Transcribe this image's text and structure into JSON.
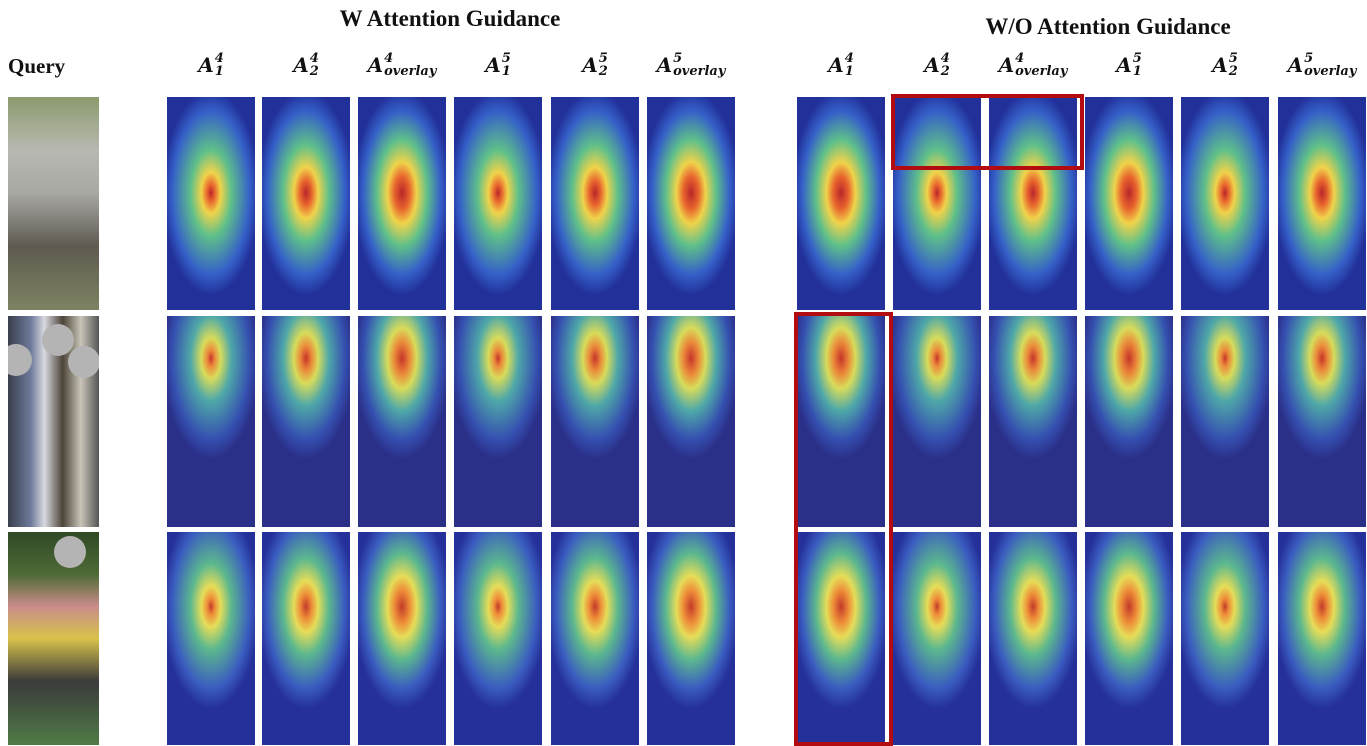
{
  "header": {
    "left_title": "W Attention Guidance",
    "right_title": "W/O Attention Guidance",
    "query_label": "Query"
  },
  "groups": [
    {
      "columns": [
        {
          "base": "A",
          "sup": "4",
          "sub": "1"
        },
        {
          "base": "A",
          "sup": "4",
          "sub": "2"
        },
        {
          "base": "A",
          "sup": "4",
          "sub": "overlay"
        },
        {
          "base": "A",
          "sup": "5",
          "sub": "1"
        },
        {
          "base": "A",
          "sup": "5",
          "sub": "2"
        },
        {
          "base": "A",
          "sup": "5",
          "sub": "overlay"
        }
      ]
    },
    {
      "columns": [
        {
          "base": "A",
          "sup": "4",
          "sub": "1"
        },
        {
          "base": "A",
          "sup": "4",
          "sub": "2"
        },
        {
          "base": "A",
          "sup": "4",
          "sub": "overlay"
        },
        {
          "base": "A",
          "sup": "5",
          "sub": "1"
        },
        {
          "base": "A",
          "sup": "5",
          "sub": "2"
        },
        {
          "base": "A",
          "sup": "5",
          "sub": "overlay"
        }
      ]
    }
  ]
}
